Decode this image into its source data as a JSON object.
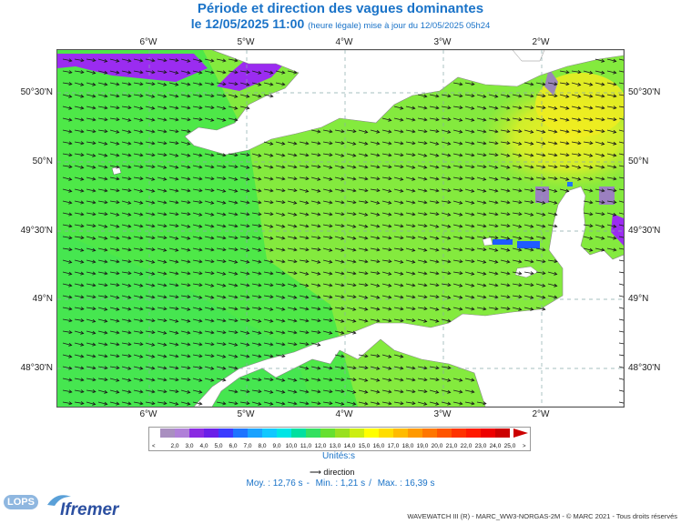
{
  "title": "Période et direction des vagues dominantes",
  "subtitle": {
    "date": "le 12/05/2025 11:00",
    "note": "(heure légale) mise à jour du 12/05/2025 05h24"
  },
  "map": {
    "lon_labels": [
      "6°W",
      "5°W",
      "4°W",
      "3°W",
      "2°W"
    ],
    "lat_labels": [
      "50°30'N",
      "50°N",
      "49°30'N",
      "49°N",
      "48°30'N"
    ],
    "land_color": "#ffffff",
    "dominant_wave_direction": "towards east-south-east"
  },
  "colorbar": {
    "under_label": "<",
    "over_label": ">",
    "labels": [
      "2,0",
      "3,0",
      "4,0",
      "5,0",
      "6,0",
      "7,0",
      "8,0",
      "9,0",
      "10,0",
      "11,0",
      "12,0",
      "13,0",
      "14,0",
      "15,0",
      "16,0",
      "17,0",
      "18,0",
      "19,0",
      "20,0",
      "21,0",
      "22,0",
      "23,0",
      "24,0",
      "25,0"
    ],
    "colors": [
      "#a98fc0",
      "#b080d8",
      "#8a2be2",
      "#6a1fe8",
      "#3b3bff",
      "#1e74ff",
      "#1aa2ff",
      "#11c8ff",
      "#00e5e5",
      "#00e0a0",
      "#33e060",
      "#66e030",
      "#99e020",
      "#ccee11",
      "#ffff00",
      "#ffdd00",
      "#ffbb00",
      "#ff9900",
      "#ff7700",
      "#ff5500",
      "#ff3300",
      "#ff1a00",
      "#ee0000",
      "#cc0000"
    ],
    "units": "Unités:s"
  },
  "legend": {
    "arrow_label": "direction"
  },
  "stats": {
    "moy": "Moy. : 12,76 s",
    "min": "Min. : 1,21 s",
    "max": "Max. : 16,39 s"
  },
  "logos": {
    "lops": "LOPS",
    "ifremer": "Ifremer"
  },
  "credits": "WAVEWATCH III (R) - MARC_WW3-NORGAS-2M - © MARC 2021 - Tous droits réservés"
}
